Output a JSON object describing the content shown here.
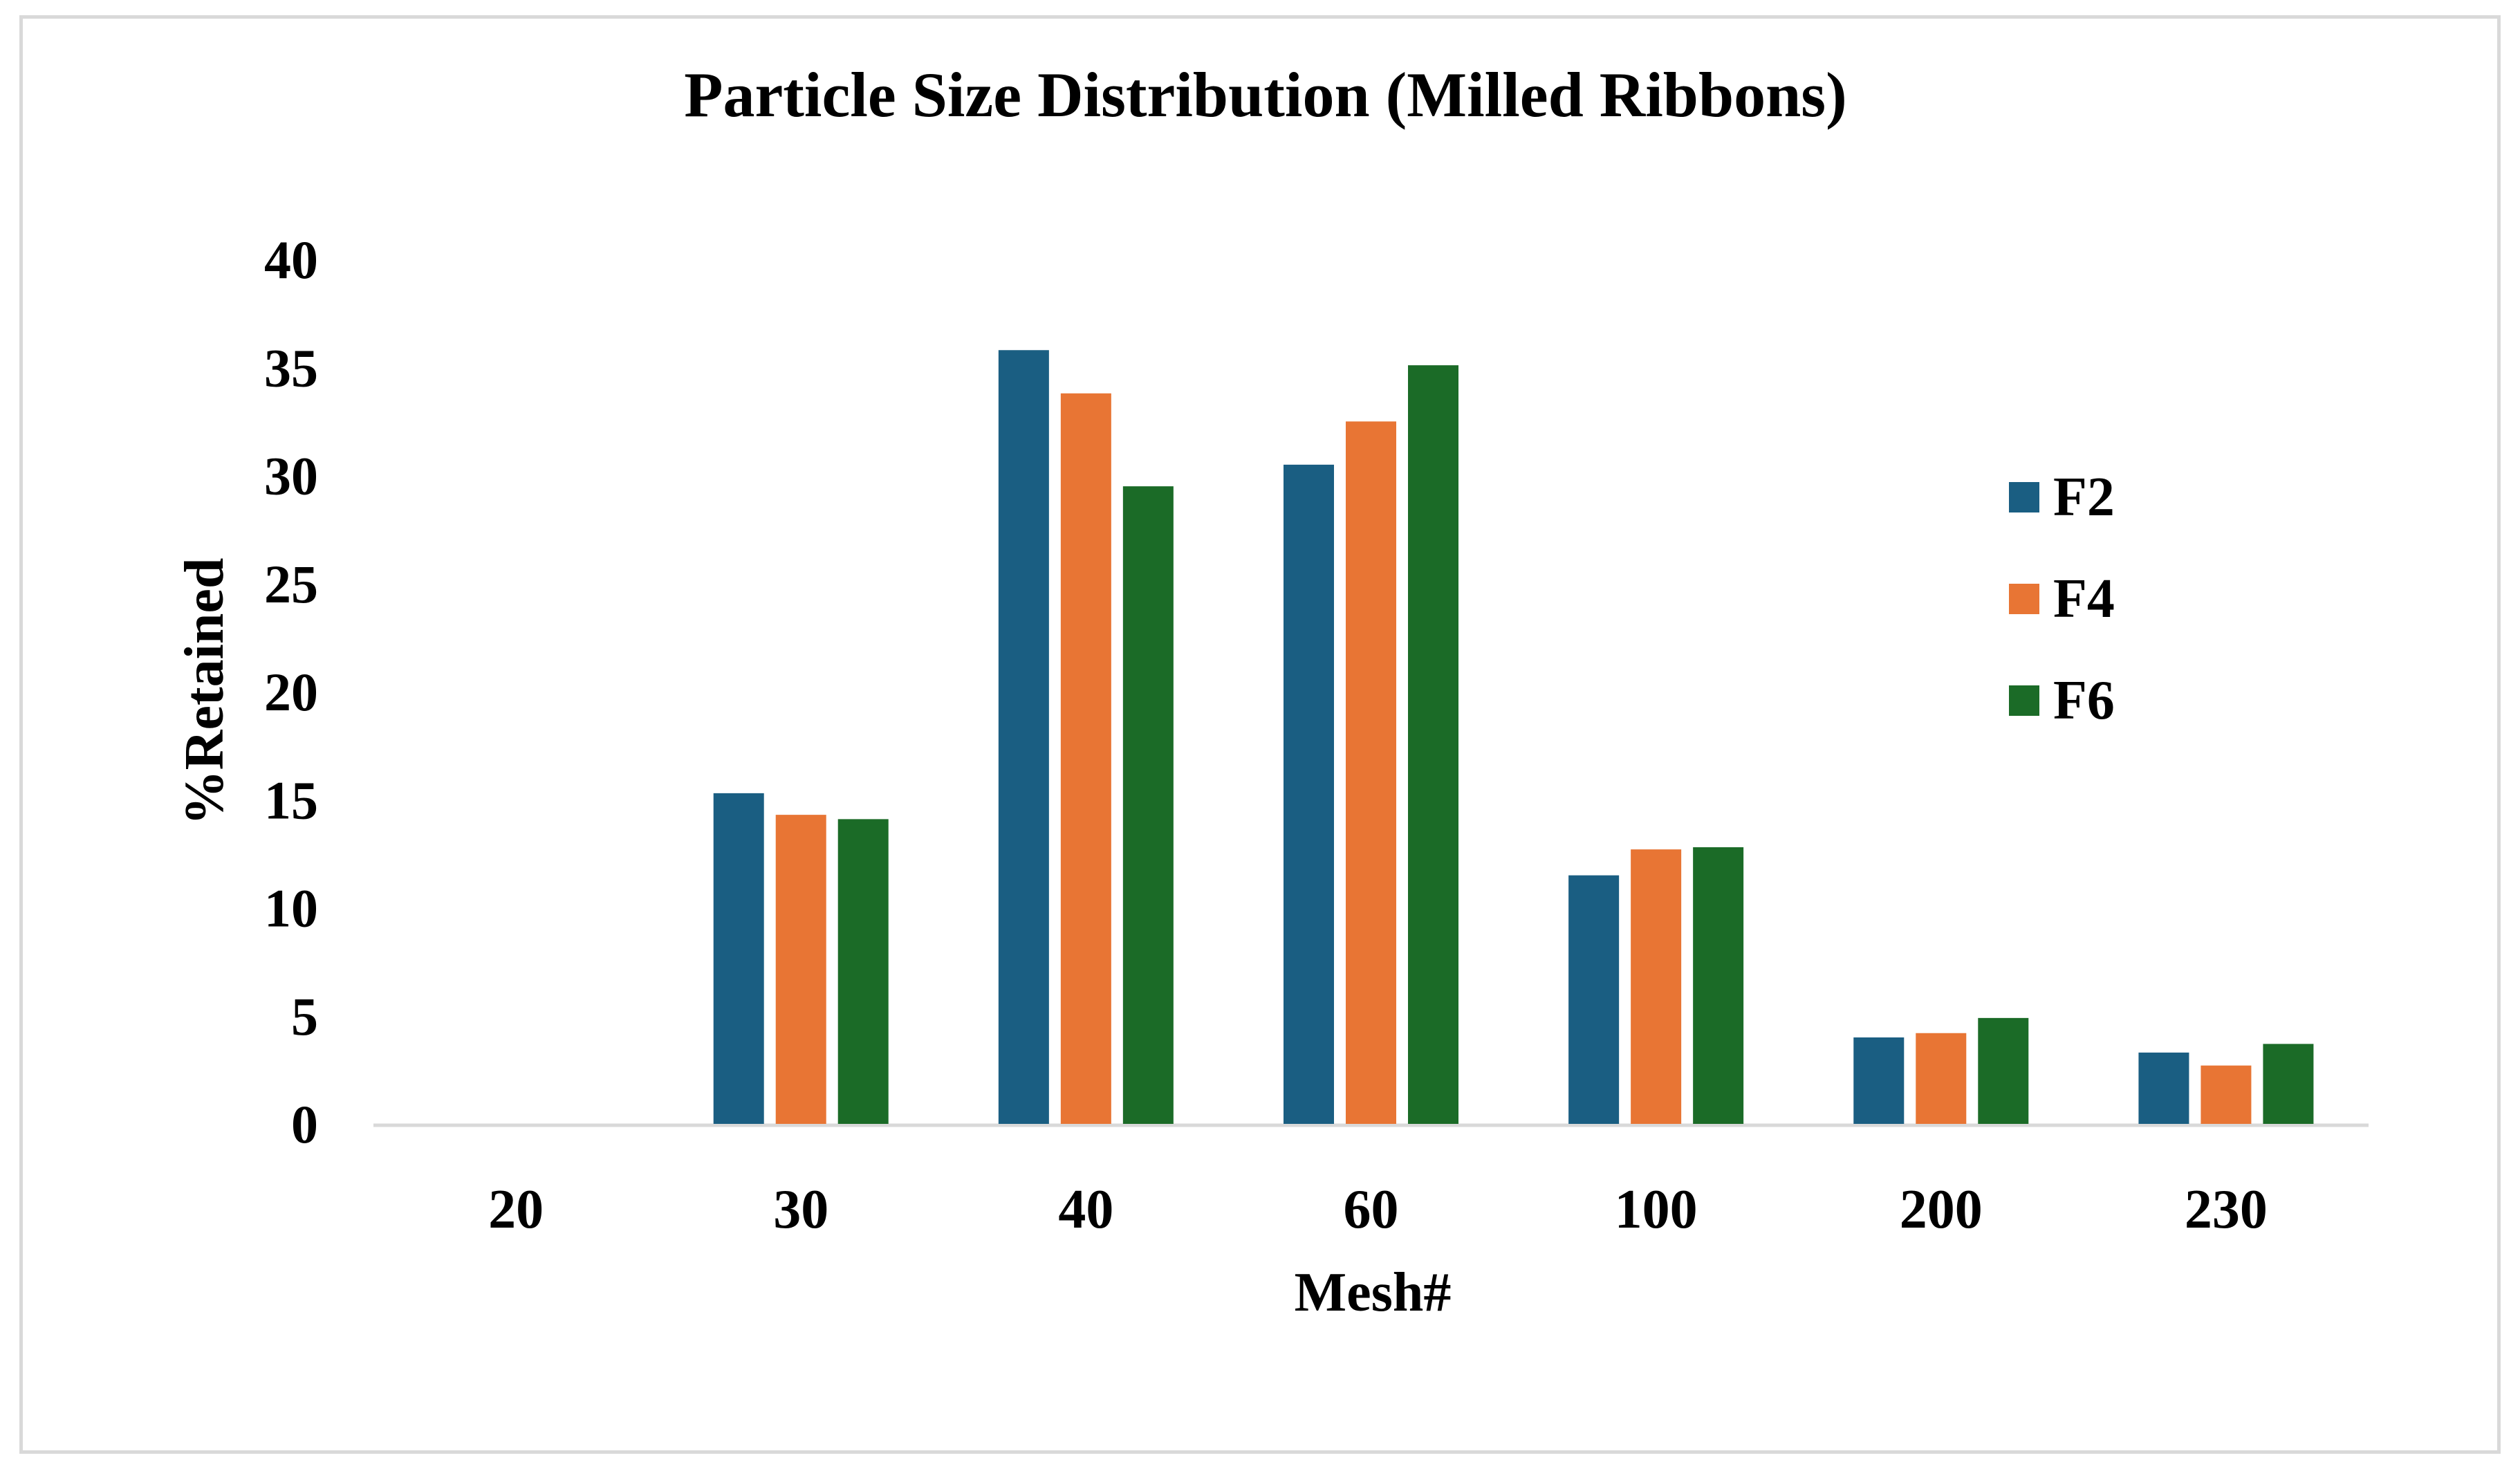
{
  "chart_data": {
    "type": "bar",
    "title": "Particle Size Distribution (Milled Ribbons)",
    "xlabel": "Mesh#",
    "ylabel": "%Retained",
    "categories": [
      "20",
      "30",
      "40",
      "60",
      "100",
      "200",
      "230"
    ],
    "series": [
      {
        "name": "F2",
        "color": "#1a5e82",
        "values": [
          0,
          15.3,
          35.8,
          30.5,
          11.5,
          4.0,
          3.3
        ]
      },
      {
        "name": "F4",
        "color": "#e87534",
        "values": [
          0,
          14.3,
          33.8,
          32.5,
          12.7,
          4.2,
          2.7
        ]
      },
      {
        "name": "F6",
        "color": "#1b6b27",
        "values": [
          0,
          14.1,
          29.5,
          35.1,
          12.8,
          4.9,
          3.7
        ]
      }
    ],
    "ylim": [
      0,
      40
    ],
    "yticks": [
      0,
      5,
      10,
      15,
      20,
      25,
      30,
      35,
      40
    ],
    "grid": false,
    "legend_position": "right"
  }
}
